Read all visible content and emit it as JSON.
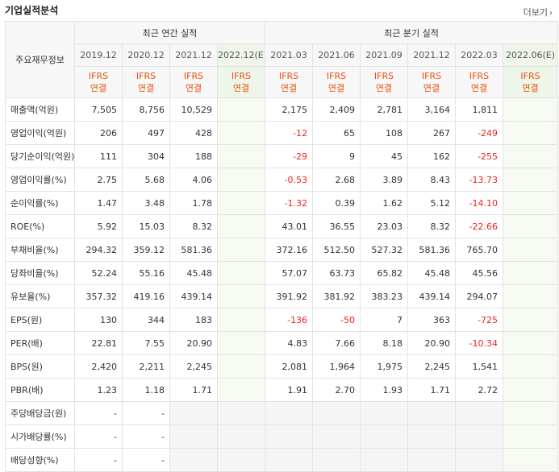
{
  "header": {
    "title": "기업실적분석",
    "more_label": "더보기"
  },
  "table": {
    "corner_label": "주요재무정보",
    "groups": {
      "annual": "최근 연간 실적",
      "quarterly": "최근 분기 실적"
    },
    "periods": [
      "2019.12",
      "2020.12",
      "2021.12",
      "2022.12(E)",
      "2021.03",
      "2021.06",
      "2021.09",
      "2021.12",
      "2022.03",
      "2022.06(E)"
    ],
    "standard_top": "IFRS",
    "standard_bottom": "연결",
    "rows": [
      {
        "label": "매출액(억원)",
        "values": [
          "7,505",
          "8,756",
          "10,529",
          "",
          "2,175",
          "2,409",
          "2,781",
          "3,164",
          "1,811",
          ""
        ]
      },
      {
        "label": "영업이익(억원)",
        "values": [
          "206",
          "497",
          "428",
          "",
          "-12",
          "65",
          "108",
          "267",
          "-249",
          ""
        ]
      },
      {
        "label": "당기순이익(억원)",
        "values": [
          "111",
          "304",
          "188",
          "",
          "-29",
          "9",
          "45",
          "162",
          "-255",
          ""
        ]
      },
      {
        "label": "영업이익률(%)",
        "values": [
          "2.75",
          "5.68",
          "4.06",
          "",
          "-0.53",
          "2.68",
          "3.89",
          "8.43",
          "-13.73",
          ""
        ]
      },
      {
        "label": "순이익률(%)",
        "values": [
          "1.47",
          "3.48",
          "1.78",
          "",
          "-1.32",
          "0.39",
          "1.62",
          "5.12",
          "-14.10",
          ""
        ]
      },
      {
        "label": "ROE(%)",
        "values": [
          "5.92",
          "15.03",
          "8.32",
          "",
          "43.01",
          "36.55",
          "23.03",
          "8.32",
          "-22.66",
          ""
        ]
      },
      {
        "label": "부채비율(%)",
        "values": [
          "294.32",
          "359.12",
          "581.36",
          "",
          "372.16",
          "512.50",
          "527.32",
          "581.36",
          "765.70",
          ""
        ]
      },
      {
        "label": "당좌비율(%)",
        "values": [
          "52.24",
          "55.16",
          "45.48",
          "",
          "57.07",
          "63.73",
          "65.82",
          "45.48",
          "45.56",
          ""
        ]
      },
      {
        "label": "유보율(%)",
        "values": [
          "357.32",
          "419.16",
          "439.14",
          "",
          "391.92",
          "381.92",
          "383.23",
          "439.14",
          "294.07",
          ""
        ]
      },
      {
        "label": "EPS(원)",
        "values": [
          "130",
          "344",
          "183",
          "",
          "-136",
          "-50",
          "7",
          "363",
          "-725",
          ""
        ]
      },
      {
        "label": "PER(배)",
        "values": [
          "22.81",
          "7.55",
          "20.90",
          "",
          "4.83",
          "7.66",
          "8.18",
          "20.90",
          "-10.34",
          ""
        ]
      },
      {
        "label": "BPS(원)",
        "values": [
          "2,420",
          "2,211",
          "2,245",
          "",
          "2,081",
          "1,964",
          "1,975",
          "2,245",
          "1,541",
          ""
        ]
      },
      {
        "label": "PBR(배)",
        "values": [
          "1.23",
          "1.18",
          "1.71",
          "",
          "1.91",
          "2.70",
          "1.93",
          "1.71",
          "2.72",
          ""
        ]
      },
      {
        "label": "주당배당금(원)",
        "values": [
          "-",
          "-",
          "",
          "",
          "",
          "",
          "",
          "",
          "",
          ""
        ]
      },
      {
        "label": "시가배당률(%)",
        "values": [
          "-",
          "-",
          "",
          "",
          "",
          "",
          "",
          "",
          "",
          ""
        ]
      },
      {
        "label": "배당성향(%)",
        "values": [
          "-",
          "-",
          "",
          "",
          "",
          "",
          "",
          "",
          "",
          ""
        ]
      }
    ]
  }
}
